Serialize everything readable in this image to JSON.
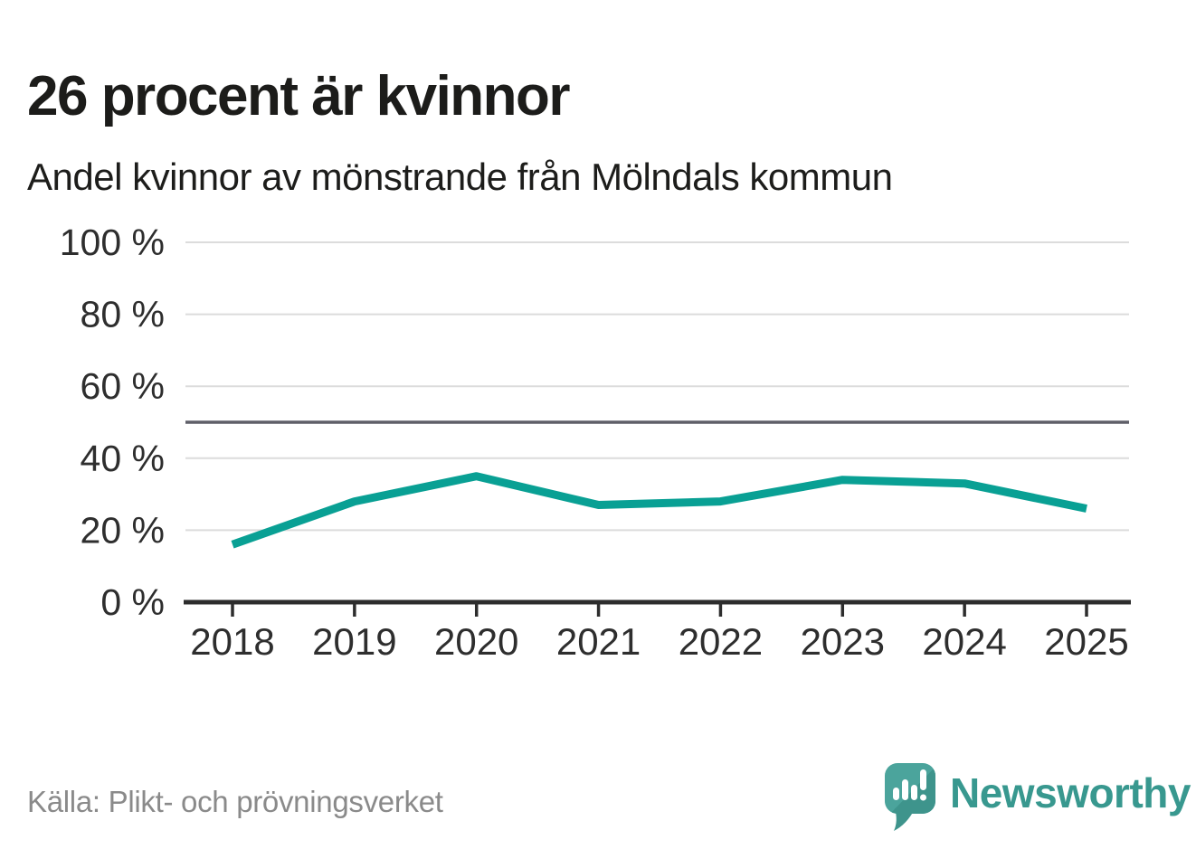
{
  "title": "26 procent är kvinnor",
  "subtitle": "Andel kvinnor av mönstrande från Mölndals kommun",
  "source": "Källa: Plikt- och prövningsverket",
  "brand": {
    "name": "Newsworthy",
    "icon": "speech-bubble-bar-chart-icon",
    "teal": "#38988f",
    "bubble_fill": "#4ba49c",
    "bubble_shade": "#3e948c"
  },
  "chart_data": {
    "type": "line",
    "title": "26 procent är kvinnor",
    "subtitle": "Andel kvinnor av mönstrande från Mölndals kommun",
    "categories": [
      "2018",
      "2019",
      "2020",
      "2021",
      "2022",
      "2023",
      "2024",
      "2025"
    ],
    "series": [
      {
        "name": "Andel kvinnor av mönstrande",
        "values": [
          16,
          28,
          35,
          27,
          28,
          34,
          33,
          26
        ]
      }
    ],
    "unit": "%",
    "ylim": [
      0,
      100
    ],
    "yticks": [
      0,
      20,
      40,
      60,
      80,
      100
    ],
    "ytick_labels": [
      "0 %",
      "20 %",
      "40 %",
      "60 %",
      "80 %",
      "100 %"
    ],
    "reference_line": 50,
    "grid": true,
    "legend": "none",
    "colors": {
      "line": "#09a094",
      "gridline": "#dcdcdc",
      "reference_line": "#5f5f68",
      "axis": "#2d2d2d",
      "tick_label": "#2e2e2e"
    }
  }
}
